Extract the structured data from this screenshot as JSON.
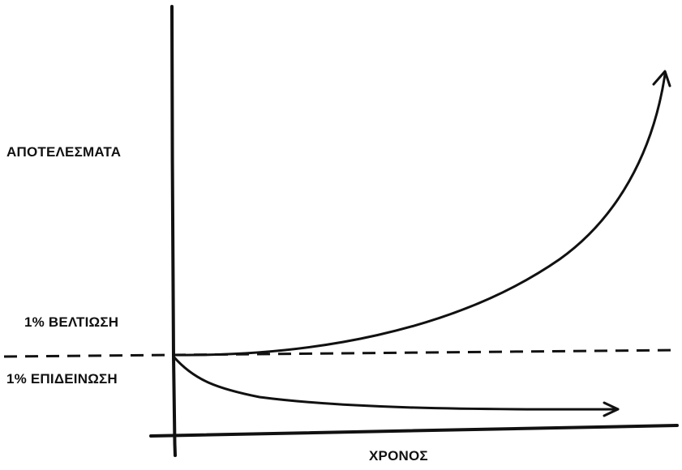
{
  "labels": {
    "y_axis": "ΑΠΟΤΕΛΕΣΜΑΤΑ",
    "x_axis": "ΧΡΟΝΟΣ",
    "improvement": "1% ΒΕΛΤΙΩΣΗ",
    "decline": "1% ΕΠΙΔΕΙΝΩΣΗ"
  },
  "colors": {
    "ink": "#111111",
    "background": "#ffffff"
  }
}
